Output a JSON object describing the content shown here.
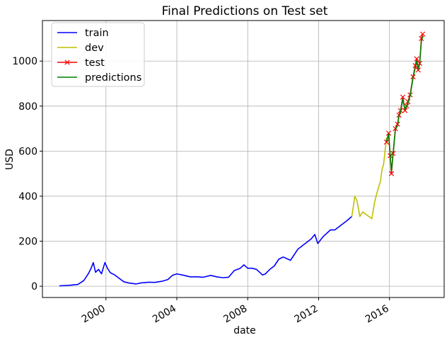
{
  "chart_data": {
    "type": "line",
    "title": "Final Predictions on Test set",
    "xlabel": "date",
    "ylabel": "USD",
    "xlim": [
      "1996-06-01",
      "2019-02-01"
    ],
    "ylim": [
      -50,
      1180
    ],
    "grid": true,
    "legend_position": "top-left",
    "x_ticks": [
      "2000",
      "2004",
      "2008",
      "2012",
      "2016"
    ],
    "y_ticks": [
      0,
      200,
      400,
      600,
      800,
      1000
    ],
    "series": [
      {
        "name": "train",
        "color": "#0000ff",
        "marker": "none",
        "points": [
          [
            "1997-05-15",
            2
          ],
          [
            "1997-12-01",
            4
          ],
          [
            "1998-06-01",
            8
          ],
          [
            "1998-10-01",
            25
          ],
          [
            "1999-01-01",
            55
          ],
          [
            "1999-03-01",
            80
          ],
          [
            "1999-04-15",
            105
          ],
          [
            "1999-06-01",
            62
          ],
          [
            "1999-08-01",
            75
          ],
          [
            "1999-10-01",
            55
          ],
          [
            "1999-12-10",
            105
          ],
          [
            "2000-02-01",
            80
          ],
          [
            "2000-04-01",
            60
          ],
          [
            "2000-07-01",
            50
          ],
          [
            "2000-10-01",
            35
          ],
          [
            "2001-01-01",
            20
          ],
          [
            "2001-04-01",
            15
          ],
          [
            "2001-09-15",
            10
          ],
          [
            "2002-01-01",
            15
          ],
          [
            "2002-06-01",
            18
          ],
          [
            "2002-10-01",
            17
          ],
          [
            "2003-03-01",
            22
          ],
          [
            "2003-07-01",
            30
          ],
          [
            "2003-10-01",
            48
          ],
          [
            "2004-01-01",
            55
          ],
          [
            "2004-06-01",
            48
          ],
          [
            "2004-10-01",
            42
          ],
          [
            "2005-03-01",
            42
          ],
          [
            "2005-07-01",
            40
          ],
          [
            "2005-12-01",
            48
          ],
          [
            "2006-04-01",
            42
          ],
          [
            "2006-08-01",
            38
          ],
          [
            "2006-12-01",
            40
          ],
          [
            "2007-04-01",
            70
          ],
          [
            "2007-08-01",
            80
          ],
          [
            "2007-10-15",
            95
          ],
          [
            "2008-01-01",
            80
          ],
          [
            "2008-04-01",
            80
          ],
          [
            "2008-07-01",
            75
          ],
          [
            "2008-11-01",
            50
          ],
          [
            "2009-01-01",
            55
          ],
          [
            "2009-04-01",
            75
          ],
          [
            "2009-07-01",
            90
          ],
          [
            "2009-10-01",
            120
          ],
          [
            "2010-01-01",
            130
          ],
          [
            "2010-06-01",
            115
          ],
          [
            "2010-11-01",
            165
          ],
          [
            "2011-04-01",
            190
          ],
          [
            "2011-08-01",
            210
          ],
          [
            "2011-10-15",
            230
          ],
          [
            "2011-12-15",
            190
          ],
          [
            "2012-04-01",
            220
          ],
          [
            "2012-09-01",
            250
          ],
          [
            "2012-12-01",
            250
          ],
          [
            "2013-04-01",
            270
          ],
          [
            "2013-08-01",
            290
          ],
          [
            "2013-11-15",
            310
          ]
        ]
      },
      {
        "name": "dev",
        "color": "#bfbf00",
        "marker": "none",
        "points": [
          [
            "2013-11-15",
            310
          ],
          [
            "2013-12-15",
            350
          ],
          [
            "2014-01-15",
            400
          ],
          [
            "2014-03-01",
            380
          ],
          [
            "2014-05-01",
            310
          ],
          [
            "2014-07-01",
            330
          ],
          [
            "2014-09-01",
            320
          ],
          [
            "2014-11-01",
            310
          ],
          [
            "2015-01-01",
            300
          ],
          [
            "2015-03-01",
            375
          ],
          [
            "2015-05-01",
            425
          ],
          [
            "2015-07-01",
            470
          ],
          [
            "2015-08-01",
            520
          ],
          [
            "2015-09-01",
            540
          ],
          [
            "2015-10-01",
            600
          ],
          [
            "2015-11-01",
            660
          ]
        ]
      },
      {
        "name": "test",
        "color": "#ff0000",
        "marker": "x",
        "points": [
          [
            "2015-11-01",
            640
          ],
          [
            "2015-12-15",
            680
          ],
          [
            "2016-01-15",
            580
          ],
          [
            "2016-02-10",
            500
          ],
          [
            "2016-03-15",
            590
          ],
          [
            "2016-05-01",
            700
          ],
          [
            "2016-06-15",
            720
          ],
          [
            "2016-07-15",
            760
          ],
          [
            "2016-08-15",
            780
          ],
          [
            "2016-10-01",
            840
          ],
          [
            "2016-11-15",
            780
          ],
          [
            "2016-12-20",
            800
          ],
          [
            "2017-01-15",
            820
          ],
          [
            "2017-03-01",
            850
          ],
          [
            "2017-05-01",
            930
          ],
          [
            "2017-06-15",
            980
          ],
          [
            "2017-07-15",
            1010
          ],
          [
            "2017-08-15",
            960
          ],
          [
            "2017-09-15",
            990
          ],
          [
            "2017-10-20",
            1100
          ],
          [
            "2017-11-15",
            1120
          ]
        ]
      },
      {
        "name": "predictions",
        "color": "#008000",
        "marker": "none",
        "points": [
          [
            "2015-11-01",
            645
          ],
          [
            "2015-12-15",
            675
          ],
          [
            "2016-01-15",
            585
          ],
          [
            "2016-02-10",
            510
          ],
          [
            "2016-03-15",
            585
          ],
          [
            "2016-05-01",
            695
          ],
          [
            "2016-06-15",
            715
          ],
          [
            "2016-07-15",
            755
          ],
          [
            "2016-08-15",
            775
          ],
          [
            "2016-10-01",
            830
          ],
          [
            "2016-11-15",
            785
          ],
          [
            "2016-12-20",
            800
          ],
          [
            "2017-01-15",
            815
          ],
          [
            "2017-03-01",
            845
          ],
          [
            "2017-05-01",
            925
          ],
          [
            "2017-06-15",
            970
          ],
          [
            "2017-07-15",
            1000
          ],
          [
            "2017-08-15",
            965
          ],
          [
            "2017-09-15",
            990
          ],
          [
            "2017-10-20",
            1090
          ],
          [
            "2017-11-15",
            1110
          ]
        ]
      }
    ]
  }
}
